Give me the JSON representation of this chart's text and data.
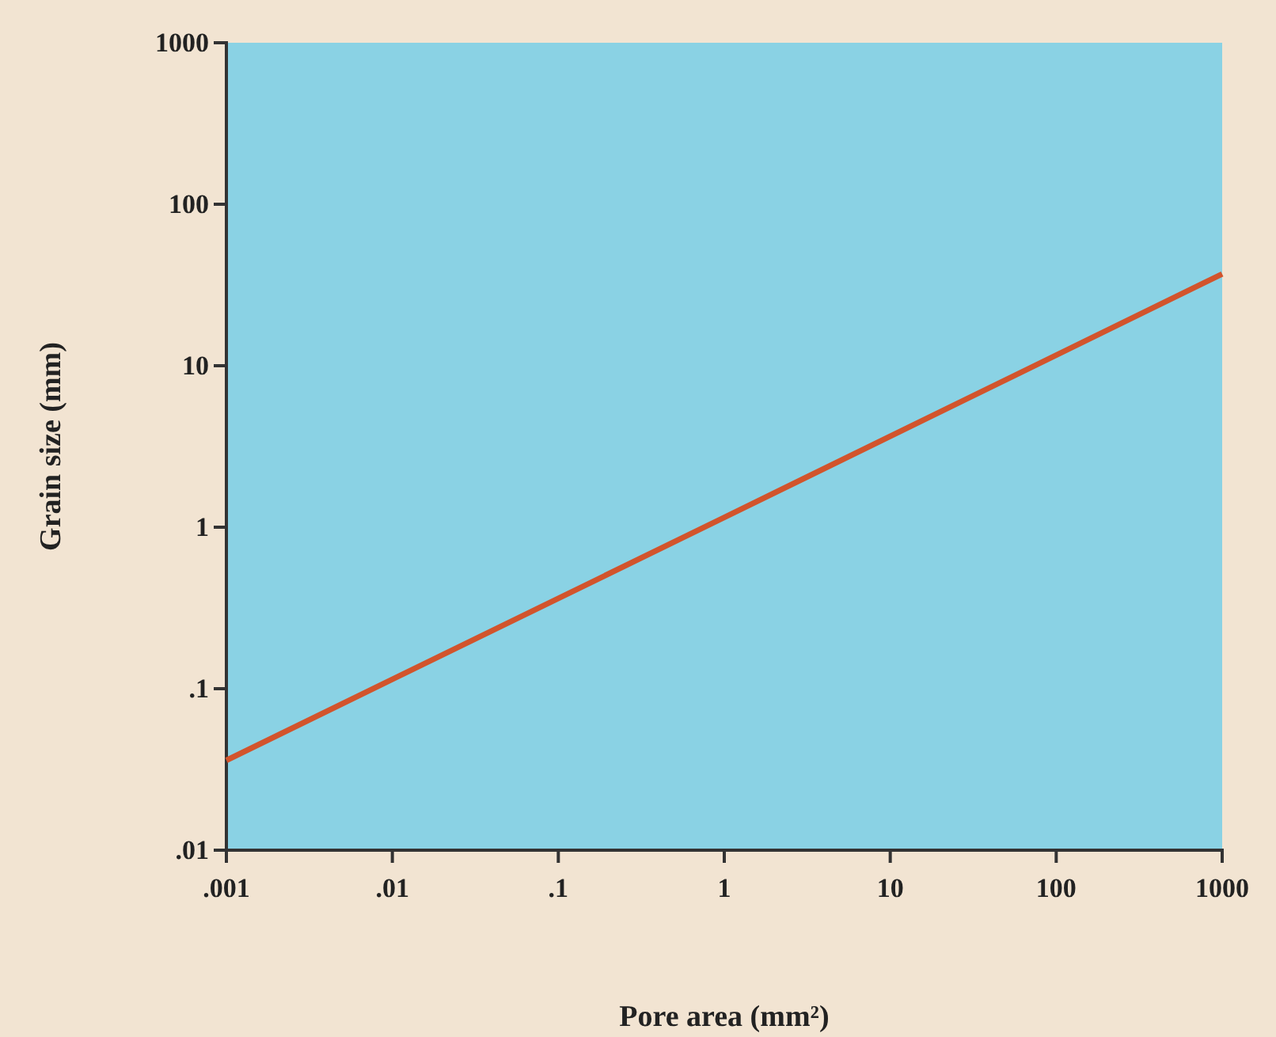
{
  "chart_data": {
    "type": "line",
    "xlabel": "Pore area (mm²)",
    "ylabel": "Grain size (mm)",
    "log": "xy",
    "x": [
      0.001,
      1,
      1000
    ],
    "series": [
      {
        "color": "#d2542c",
        "values": [
          0.036,
          1.15,
          37
        ]
      }
    ],
    "xlim": [
      0.001,
      1000
    ],
    "ylim": [
      0.01,
      1000
    ],
    "xticks": [
      {
        "value": 0.001,
        "label": ".001"
      },
      {
        "value": 0.01,
        "label": ".01"
      },
      {
        "value": 0.1,
        "label": ".1"
      },
      1,
      10,
      100,
      1000
    ],
    "yticks": [
      {
        "value": 0.01,
        "label": ".01"
      },
      {
        "value": 0.1,
        "label": ".1"
      },
      1,
      10,
      100,
      1000
    ],
    "grid": false,
    "marker": "none",
    "line_style": "solid"
  }
}
